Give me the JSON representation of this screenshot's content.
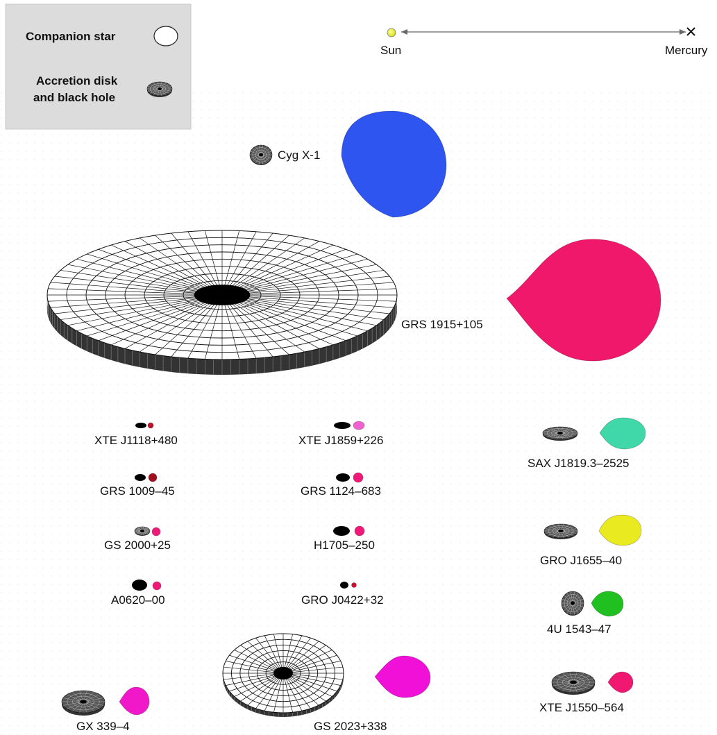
{
  "legend": {
    "companion_star": "Companion star",
    "accretion_line1": "Accretion disk",
    "accretion_line2": "and black hole"
  },
  "scale": {
    "left": "Sun",
    "right": "Mercury"
  },
  "systems": [
    {
      "id": "cyg-x-1",
      "label": "Cyg X-1",
      "star_color": "#2f55f0"
    },
    {
      "id": "grs-1915",
      "label": "GRS 1915+105",
      "star_color": "#f0186a"
    },
    {
      "id": "xte-j1118",
      "label": "XTE J1118+480",
      "star_color": "#c0102a"
    },
    {
      "id": "xte-j1859",
      "label": "XTE J1859+226",
      "star_color": "#f060d0"
    },
    {
      "id": "sax-j1819",
      "label": "SAX J1819.3–2525",
      "star_color": "#40d8a8"
    },
    {
      "id": "grs-1009",
      "label": "GRS 1009–45",
      "star_color": "#a01020"
    },
    {
      "id": "grs-1124",
      "label": "GRS 1124–683",
      "star_color": "#f01878"
    },
    {
      "id": "gs-2000",
      "label": "GS 2000+25",
      "star_color": "#f01878"
    },
    {
      "id": "h1705",
      "label": "H1705–250",
      "star_color": "#f01878"
    },
    {
      "id": "gro-j1655",
      "label": "GRO J1655–40",
      "star_color": "#eaea20"
    },
    {
      "id": "a0620",
      "label": "A0620–00",
      "star_color": "#f01878"
    },
    {
      "id": "gro-j0422",
      "label": "GRO J0422+32",
      "star_color": "#d01030"
    },
    {
      "id": "4u-1543",
      "label": "4U 1543–47",
      "star_color": "#20c020"
    },
    {
      "id": "gx-339",
      "label": "GX 339–4",
      "star_color": "#f018c8"
    },
    {
      "id": "gs-2023",
      "label": "GS 2023+338",
      "star_color": "#f010d8"
    },
    {
      "id": "xte-j1550",
      "label": "XTE J1550–564",
      "star_color": "#f01870"
    }
  ]
}
